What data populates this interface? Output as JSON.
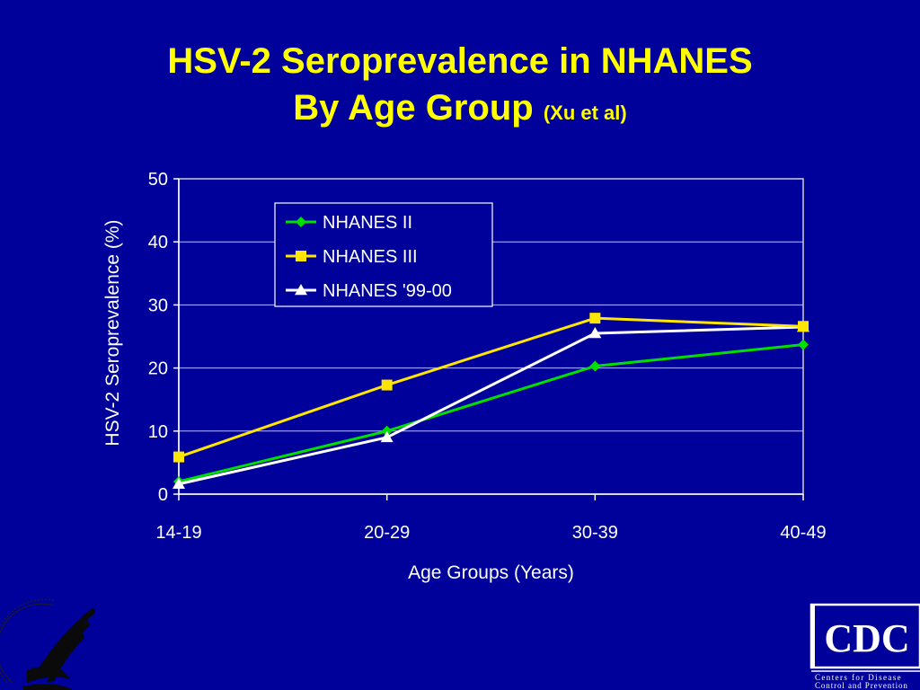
{
  "slide": {
    "title_line1": "HSV-2 Seroprevalence in NHANES",
    "title_line2": "By Age Group",
    "title_citation": "(Xu et al)"
  },
  "colors": {
    "background": "#00009A",
    "title": "#FFFF00",
    "axis_text": "#FFFFFF",
    "series_nhanes_ii": "#00E000",
    "series_nhanes_iii": "#FFE600",
    "series_nhanes_99_00": "#FFFFFF"
  },
  "chart_data": {
    "type": "line",
    "title": "",
    "xlabel": "Age Groups (Years)",
    "ylabel": "HSV-2 Seroprevalence (%)",
    "categories": [
      "14-19",
      "20-29",
      "30-39",
      "40-49"
    ],
    "ylim": [
      0,
      50
    ],
    "yticks": [
      0,
      10,
      20,
      30,
      40,
      50
    ],
    "grid": true,
    "legend_position": "top-center",
    "series": [
      {
        "name": "NHANES II",
        "marker": "diamond",
        "values": [
          2.0,
          10.0,
          20.3,
          23.7
        ]
      },
      {
        "name": "NHANES III",
        "marker": "square",
        "values": [
          5.9,
          17.3,
          27.9,
          26.6
        ]
      },
      {
        "name": "NHANES '99-00",
        "marker": "triangle",
        "values": [
          1.6,
          9.0,
          25.5,
          26.5
        ]
      }
    ]
  },
  "logos": {
    "hhs_seal_icon": "hhs-eagle-seal-icon",
    "cdc_logo_text": "CDC",
    "cdc_tagline_line1": "Centers for Disease",
    "cdc_tagline_line2": "Control and Prevention"
  }
}
